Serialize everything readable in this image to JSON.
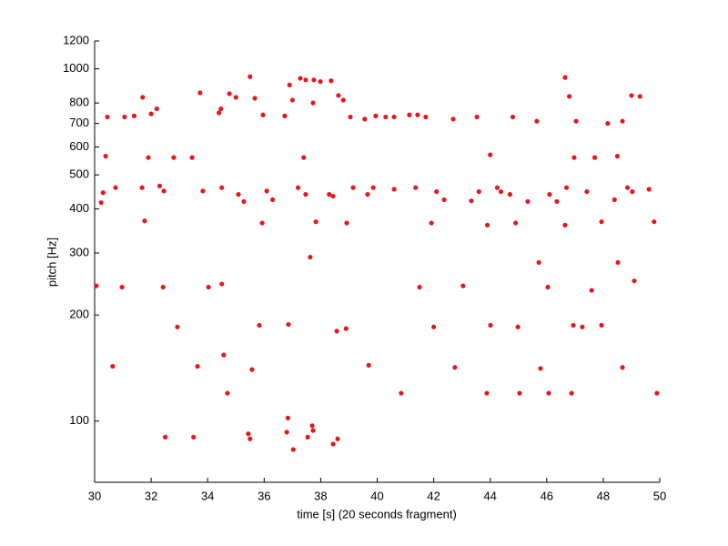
{
  "chart_data": {
    "type": "scatter",
    "xlabel": "time [s] (20 seconds fragment)",
    "ylabel": "pitch [Hz]",
    "color": "#e8161b",
    "log_y": true,
    "xlim": [
      30,
      50
    ],
    "xticks": [
      30,
      32,
      34,
      36,
      38,
      40,
      42,
      44,
      46,
      48,
      50
    ],
    "ylim": [
      67,
      1200
    ],
    "yticks": [
      100,
      200,
      300,
      400,
      500,
      600,
      700,
      800,
      1000,
      1200
    ],
    "x": [
      30.45,
      31.06,
      31.4,
      31.7,
      32.0,
      32.2,
      33.73,
      34.4,
      34.47,
      34.77,
      35.0,
      35.67,
      35.5,
      35.96,
      36.73,
      36.9,
      37.0,
      37.28,
      37.47,
      37.76,
      37.99,
      38.37,
      38.63,
      38.8,
      39.05,
      37.73,
      39.56,
      39.95,
      40.3,
      40.6,
      41.14,
      41.43,
      41.72,
      42.69,
      43.53,
      44.8,
      45.65,
      47.04,
      46.65,
      46.8,
      48.16,
      48.68,
      49.0,
      49.3,
      30.39,
      31.9,
      32.8,
      33.45,
      37.4,
      44.0,
      46.97,
      47.7,
      48.5,
      30.23,
      30.3,
      30.74,
      31.68,
      32.3,
      32.45,
      33.83,
      34.5,
      35.09,
      35.28,
      36.09,
      36.3,
      37.2,
      37.47,
      38.3,
      38.44,
      39.15,
      39.66,
      39.86,
      40.6,
      41.36,
      42.1,
      42.37,
      43.33,
      43.6,
      44.25,
      44.38,
      44.7,
      45.33,
      46.1,
      46.36,
      46.7,
      47.42,
      48.4,
      48.86,
      49.03,
      49.62,
      31.77,
      35.93,
      37.83,
      38.92,
      41.92,
      43.9,
      44.9,
      46.65,
      47.94,
      49.8,
      37.63,
      45.72,
      48.52,
      30.06,
      30.97,
      32.42,
      34.03,
      34.5,
      41.5,
      43.04,
      46.04,
      47.59,
      49.1,
      32.93,
      35.83,
      36.86,
      38.57,
      38.9,
      42.0,
      44.01,
      44.98,
      46.94,
      47.26,
      47.94,
      34.57,
      35.57,
      30.64,
      33.64,
      39.7,
      42.75,
      45.78,
      48.68,
      34.7,
      40.85,
      43.88,
      45.04,
      46.07,
      46.88,
      49.9,
      32.5,
      33.5,
      35.44,
      35.5,
      36.8,
      36.84,
      37.03,
      37.54,
      37.7,
      37.73,
      38.44,
      38.6
    ],
    "values": [
      730,
      730,
      735,
      830,
      745,
      770,
      855,
      750,
      770,
      850,
      830,
      825,
      950,
      740,
      735,
      900,
      815,
      940,
      930,
      930,
      920,
      925,
      840,
      815,
      730,
      800,
      720,
      735,
      730,
      730,
      740,
      740,
      730,
      720,
      730,
      730,
      710,
      710,
      945,
      835,
      700,
      710,
      840,
      835,
      565,
      560,
      560,
      560,
      560,
      570,
      560,
      560,
      565,
      417,
      445,
      460,
      460,
      465,
      450,
      450,
      460,
      440,
      420,
      450,
      425,
      460,
      440,
      440,
      435,
      460,
      440,
      460,
      455,
      460,
      448,
      425,
      422,
      448,
      460,
      448,
      440,
      420,
      440,
      420,
      460,
      448,
      425,
      460,
      448,
      455,
      370,
      365,
      368,
      365,
      365,
      360,
      365,
      360,
      368,
      368,
      292,
      282,
      282,
      242,
      240,
      240,
      240,
      245,
      240,
      242,
      240,
      235,
      250,
      185,
      187,
      188,
      180,
      183,
      185,
      187,
      185,
      187,
      185,
      187,
      154,
      140,
      143,
      143,
      144,
      142,
      141,
      142,
      120,
      120,
      120,
      120,
      120,
      120,
      120,
      90,
      90,
      92,
      89,
      93,
      102,
      83,
      90,
      97,
      94,
      86,
      89
    ]
  }
}
